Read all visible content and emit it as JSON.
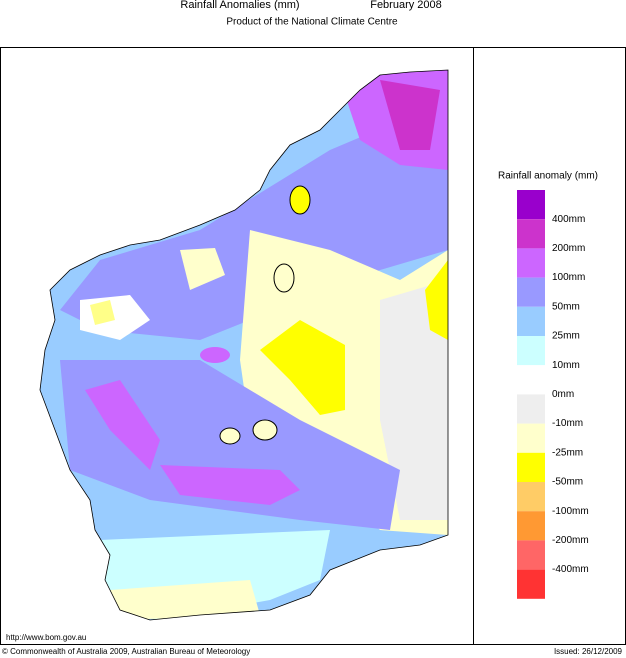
{
  "header": {
    "title": "Rainfall Anomalies (mm)",
    "period": "February 2008",
    "subtitle": "Product of the National Climate Centre"
  },
  "legend": {
    "title": "Rainfall anomaly (mm)",
    "colors": [
      "#9900cc",
      "#cc33cc",
      "#cc66ff",
      "#9999ff",
      "#99ccff",
      "#ccffff",
      "#ffffff",
      "#eeeeee",
      "#ffffcc",
      "#ffff00",
      "#ffcc66",
      "#ff9933",
      "#ff6666",
      "#ff3333"
    ],
    "labels": [
      "400mm",
      "200mm",
      "100mm",
      "50mm",
      "25mm",
      "10mm",
      "0mm",
      "-10mm",
      "-25mm",
      "-50mm",
      "-100mm",
      "-200mm",
      "-400mm"
    ]
  },
  "footer": {
    "url": "http://www.bom.gov.au",
    "copyright": "© Commonwealth of Australia 2009, Australian Bureau of Meteorology",
    "issued": "Issued: 26/12/2009"
  }
}
